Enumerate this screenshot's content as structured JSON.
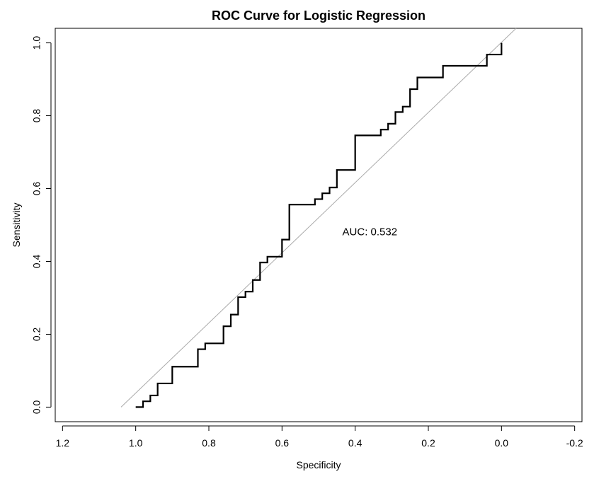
{
  "chart_data": {
    "type": "line",
    "title": "ROC Curve for Logistic Regression",
    "xlabel": "Specificity",
    "ylabel": "Sensitivity",
    "x_reversed": true,
    "xlim": [
      1.22,
      -0.22
    ],
    "ylim": [
      -0.04,
      1.04
    ],
    "x_ticks": [
      1.2,
      1.0,
      0.8,
      0.6,
      0.4,
      0.2,
      0.0,
      -0.2
    ],
    "x_tick_labels": [
      "1.2",
      "1.0",
      "0.8",
      "0.6",
      "0.4",
      "0.2",
      "0.0",
      "-0.2"
    ],
    "y_ticks": [
      0.0,
      0.2,
      0.4,
      0.6,
      0.8,
      1.0
    ],
    "y_tick_labels": [
      "0.0",
      "0.2",
      "0.4",
      "0.6",
      "0.8",
      "1.0"
    ],
    "grid": false,
    "annotation": "AUC: 0.532",
    "annotation_pos": {
      "specificity": 0.36,
      "sensitivity": 0.48
    },
    "reference_line": {
      "from": [
        1.04,
        0.0
      ],
      "to": [
        -0.04,
        1.04
      ],
      "color": "#aaaaaa"
    },
    "series": [
      {
        "color": "#000000",
        "points": [
          [
            1.0,
            0.0
          ],
          [
            0.98,
            0.0
          ],
          [
            0.98,
            0.016
          ],
          [
            0.96,
            0.016
          ],
          [
            0.96,
            0.032
          ],
          [
            0.94,
            0.032
          ],
          [
            0.94,
            0.065
          ],
          [
            0.9,
            0.065
          ],
          [
            0.9,
            0.111
          ],
          [
            0.83,
            0.111
          ],
          [
            0.83,
            0.159
          ],
          [
            0.81,
            0.159
          ],
          [
            0.81,
            0.175
          ],
          [
            0.76,
            0.175
          ],
          [
            0.76,
            0.222
          ],
          [
            0.74,
            0.222
          ],
          [
            0.74,
            0.254
          ],
          [
            0.72,
            0.254
          ],
          [
            0.72,
            0.302
          ],
          [
            0.7,
            0.302
          ],
          [
            0.7,
            0.317
          ],
          [
            0.68,
            0.317
          ],
          [
            0.68,
            0.349
          ],
          [
            0.66,
            0.349
          ],
          [
            0.66,
            0.397
          ],
          [
            0.64,
            0.397
          ],
          [
            0.64,
            0.413
          ],
          [
            0.6,
            0.413
          ],
          [
            0.6,
            0.46
          ],
          [
            0.58,
            0.46
          ],
          [
            0.58,
            0.556
          ],
          [
            0.51,
            0.556
          ],
          [
            0.51,
            0.571
          ],
          [
            0.49,
            0.571
          ],
          [
            0.49,
            0.587
          ],
          [
            0.47,
            0.587
          ],
          [
            0.47,
            0.603
          ],
          [
            0.45,
            0.603
          ],
          [
            0.45,
            0.651
          ],
          [
            0.4,
            0.651
          ],
          [
            0.4,
            0.746
          ],
          [
            0.33,
            0.746
          ],
          [
            0.33,
            0.762
          ],
          [
            0.31,
            0.762
          ],
          [
            0.31,
            0.778
          ],
          [
            0.29,
            0.778
          ],
          [
            0.29,
            0.81
          ],
          [
            0.27,
            0.81
          ],
          [
            0.27,
            0.825
          ],
          [
            0.25,
            0.825
          ],
          [
            0.25,
            0.873
          ],
          [
            0.23,
            0.873
          ],
          [
            0.23,
            0.905
          ],
          [
            0.16,
            0.905
          ],
          [
            0.16,
            0.937
          ],
          [
            0.04,
            0.937
          ],
          [
            0.04,
            0.968
          ],
          [
            0.0,
            0.968
          ],
          [
            0.0,
            1.0
          ]
        ]
      }
    ]
  }
}
